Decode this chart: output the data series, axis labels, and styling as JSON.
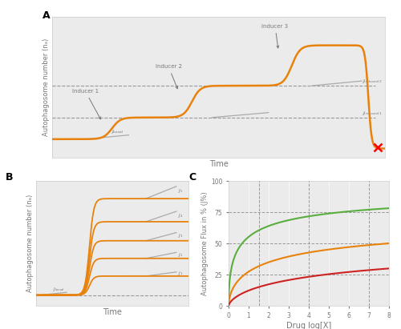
{
  "fig_bg": "#ffffff",
  "panel_bg": "#ebebeb",
  "grid_color": "#ffffff",
  "orange_color": "#e8820c",
  "green_color": "#5aad3f",
  "red_color": "#cc2222",
  "gray_color": "#777777",
  "dashed_color": "#999999",
  "slope_color": "#aaaaaa",
  "panel_A": {
    "title": "A",
    "xlabel": "Time",
    "ylabel": "Autophagosome number (nₐ)"
  },
  "panel_B": {
    "title": "B",
    "xlabel": "Time",
    "ylabel": "Autophagosome number (nₐ)"
  },
  "panel_C": {
    "title": "C",
    "xlabel": "Drug log[X]",
    "ylabel": "Autophagosome Flux in % (J%)",
    "xlim": [
      0,
      8
    ],
    "ylim": [
      0,
      100
    ],
    "xticks": [
      0,
      1,
      2,
      3,
      4,
      5,
      6,
      7,
      8
    ],
    "yticks": [
      0,
      25,
      50,
      75,
      100
    ],
    "hlines": [
      25,
      50,
      75
    ],
    "vlines": [
      1.5,
      4.0,
      7.0
    ]
  }
}
